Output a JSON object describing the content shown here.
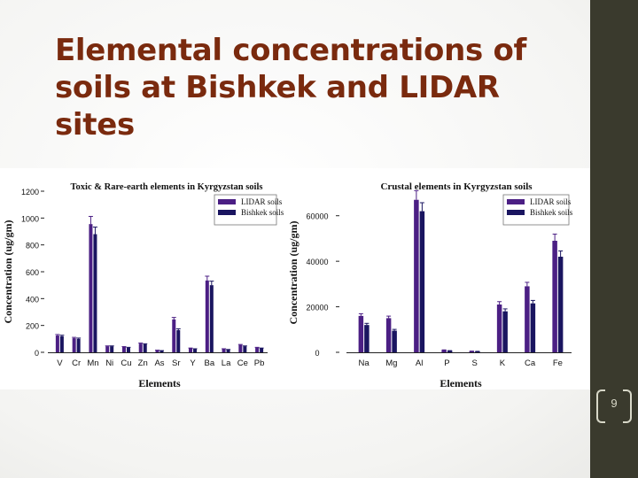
{
  "slide": {
    "title": "Elemental concentrations of soils at Bishkek and LIDAR sites",
    "page_number": "9"
  },
  "colors": {
    "title": "#7a2a0e",
    "sidebar": "#3a3a2d",
    "lidar": "#4b1f84",
    "bishkek": "#1a1560"
  },
  "chart_data": [
    {
      "type": "bar",
      "title": "Toxic & Rare-earth elements in Kyrgyzstan soils",
      "xlabel": "Elements",
      "ylabel": "Concentration (ug/gm)",
      "ylim": [
        0,
        1200
      ],
      "yticks": [
        0,
        200,
        400,
        600,
        800,
        1000,
        1200
      ],
      "legend": "top-right",
      "categories": [
        "V",
        "Cr",
        "Mn",
        "Ni",
        "Cu",
        "Zn",
        "As",
        "Sr",
        "Y",
        "Ba",
        "La",
        "Ce",
        "Pb"
      ],
      "series": [
        {
          "name": "LIDAR soils",
          "values": [
            125,
            105,
            955,
            45,
            40,
            65,
            15,
            245,
            30,
            535,
            25,
            55,
            35
          ]
        },
        {
          "name": "Bishkek soils",
          "values": [
            120,
            100,
            880,
            45,
            35,
            60,
            12,
            165,
            25,
            500,
            20,
            45,
            30
          ]
        }
      ]
    },
    {
      "type": "bar",
      "title": "Crustal elements in Kyrgyzstan soils",
      "xlabel": "Elements",
      "ylabel": "Concentration (ug/gm)",
      "ylim": [
        0,
        70000
      ],
      "yticks": [
        0,
        20000,
        40000,
        60000
      ],
      "legend": "top-right",
      "categories": [
        "Na",
        "Mg",
        "Al",
        "P",
        "S",
        "K",
        "Ca",
        "Fe"
      ],
      "series": [
        {
          "name": "LIDAR soils",
          "values": [
            16000,
            15000,
            67000,
            1000,
            500,
            21000,
            29000,
            49000
          ]
        },
        {
          "name": "Bishkek soils",
          "values": [
            12000,
            9500,
            62000,
            700,
            400,
            18000,
            21500,
            42000
          ]
        }
      ]
    }
  ]
}
